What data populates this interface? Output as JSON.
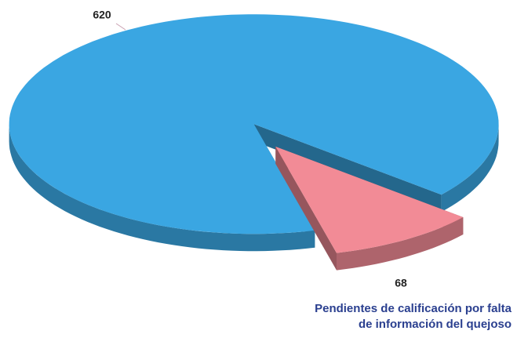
{
  "chart_data": {
    "type": "pie",
    "categories": [
      null,
      "Pendientes de calificación por falta de información del quejoso"
    ],
    "values": [
      620,
      68
    ],
    "colors": [
      "#3aa6e2",
      "#f28b96"
    ]
  }
}
